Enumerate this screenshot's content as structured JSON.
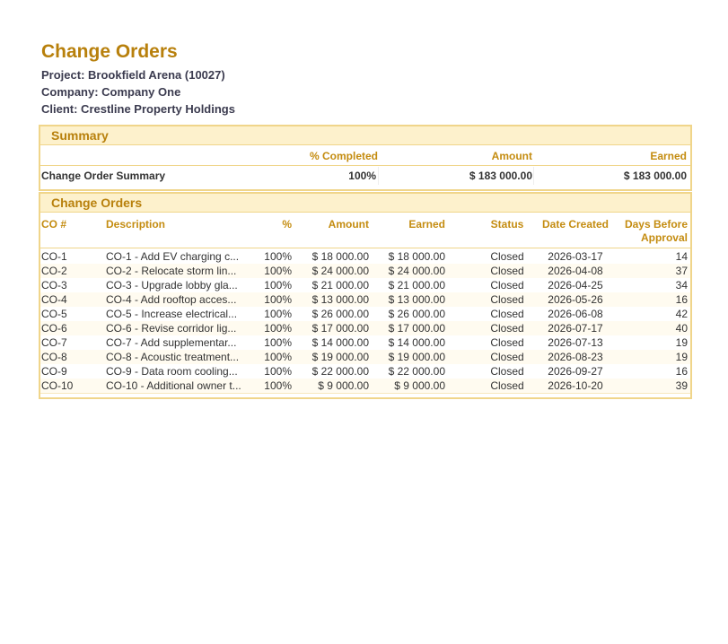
{
  "header": {
    "title": "Change Orders",
    "project": "Project: Brookfield Arena (10027)",
    "company": "Company: Company One",
    "client": "Client: Crestline Property Holdings"
  },
  "summary": {
    "title": "Summary",
    "columns": [
      "% Completed",
      "Amount",
      "Earned"
    ],
    "row": [
      "Change Order Summary",
      "100%",
      "$ 183 000.00",
      "$ 183 000.00"
    ]
  },
  "orders": {
    "title": "Change Orders",
    "columns": [
      "CO #",
      "Description",
      "%",
      "Amount",
      "Earned",
      "Status",
      "Date Created",
      "Days Before Approval"
    ],
    "rows": [
      [
        "CO-1",
        "CO-1 - Add EV charging c...",
        "100%",
        "$ 18 000.00",
        "$ 18 000.00",
        "Closed",
        "2026-03-17",
        "14"
      ],
      [
        "CO-2",
        "CO-2 - Relocate storm lin...",
        "100%",
        "$ 24 000.00",
        "$ 24 000.00",
        "Closed",
        "2026-04-08",
        "37"
      ],
      [
        "CO-3",
        "CO-3 - Upgrade lobby gla...",
        "100%",
        "$ 21 000.00",
        "$ 21 000.00",
        "Closed",
        "2026-04-25",
        "34"
      ],
      [
        "CO-4",
        "CO-4 - Add rooftop acces...",
        "100%",
        "$ 13 000.00",
        "$ 13 000.00",
        "Closed",
        "2026-05-26",
        "16"
      ],
      [
        "CO-5",
        "CO-5 - Increase electrical...",
        "100%",
        "$ 26 000.00",
        "$ 26 000.00",
        "Closed",
        "2026-06-08",
        "42"
      ],
      [
        "CO-6",
        "CO-6 - Revise corridor lig...",
        "100%",
        "$ 17 000.00",
        "$ 17 000.00",
        "Closed",
        "2026-07-17",
        "40"
      ],
      [
        "CO-7",
        "CO-7 - Add supplementar...",
        "100%",
        "$ 14 000.00",
        "$ 14 000.00",
        "Closed",
        "2026-07-13",
        "19"
      ],
      [
        "CO-8",
        "CO-8 - Acoustic treatment...",
        "100%",
        "$ 19 000.00",
        "$ 19 000.00",
        "Closed",
        "2026-08-23",
        "19"
      ],
      [
        "CO-9",
        "CO-9 - Data room cooling...",
        "100%",
        "$ 22 000.00",
        "$ 22 000.00",
        "Closed",
        "2026-09-27",
        "16"
      ],
      [
        "CO-10",
        "CO-10 - Additional owner t...",
        "100%",
        "$ 9 000.00",
        "$ 9 000.00",
        "Closed",
        "2026-10-20",
        "39"
      ]
    ]
  }
}
